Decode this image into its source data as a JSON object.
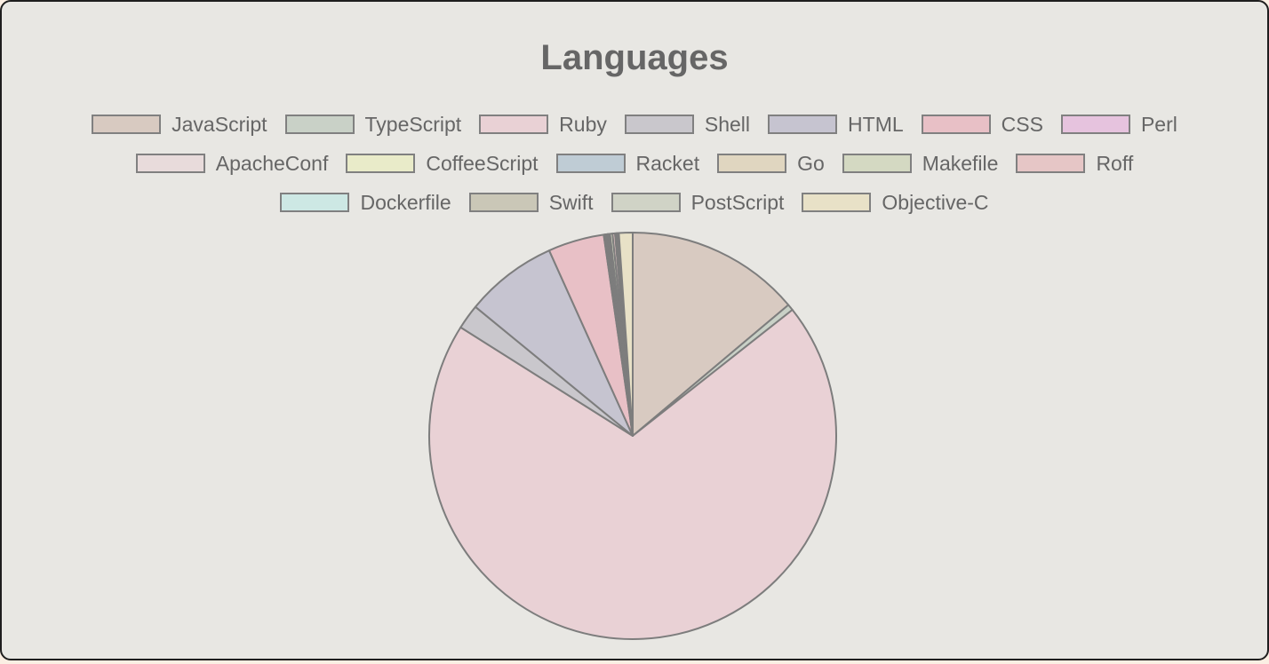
{
  "chart_data": {
    "type": "pie",
    "title": "Languages",
    "legend_position": "top",
    "categories": [
      "JavaScript",
      "TypeScript",
      "Ruby",
      "Shell",
      "HTML",
      "CSS",
      "Perl",
      "ApacheConf",
      "CoffeeScript",
      "Racket",
      "Go",
      "Makefile",
      "Roff",
      "Dockerfile",
      "Swift",
      "PostScript",
      "Objective-C"
    ],
    "values": [
      14.0,
      0.5,
      70.3,
      2.0,
      7.4,
      4.5,
      0.1,
      0.1,
      0.1,
      0.1,
      0.1,
      0.2,
      0.2,
      0.1,
      0.1,
      0.1,
      1.1
    ],
    "colors": [
      "#d8cac1",
      "#c9d1c7",
      "#e9d1d5",
      "#c9c7cc",
      "#c6c4d0",
      "#e8c0c6",
      "#e6c3de",
      "#e8dbdb",
      "#e9ebc9",
      "#bfccd5",
      "#e0d6c0",
      "#d4d9c2",
      "#e6c6c6",
      "#cde8e4",
      "#cac7b7",
      "#d0d3c6",
      "#e8e1c7"
    ]
  }
}
